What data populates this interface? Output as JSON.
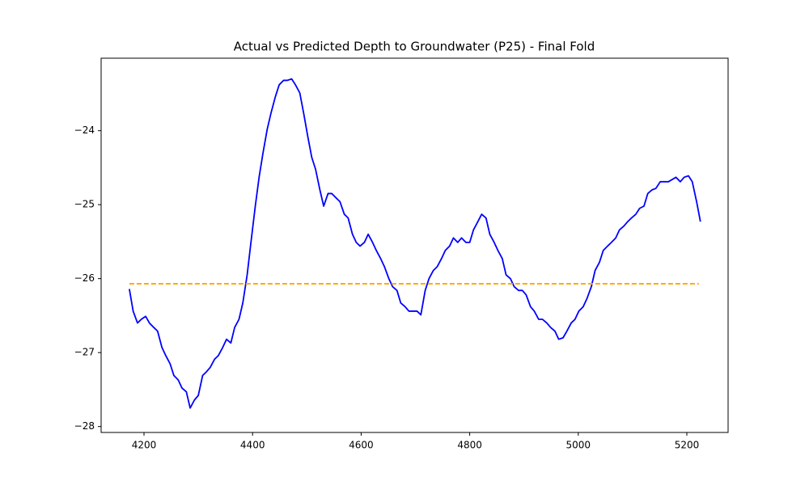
{
  "chart_data": {
    "type": "line",
    "title": "Actual vs Predicted Depth to Groundwater (P25) - Final Fold",
    "xlim": [
      4121,
      5276
    ],
    "ylim": [
      -28.08,
      -23.02
    ],
    "xticks": [
      4200,
      4400,
      4600,
      4800,
      5000,
      5200
    ],
    "yticks": [
      {
        "value": -24,
        "label": "−24"
      },
      {
        "value": -25,
        "label": "−25"
      },
      {
        "value": -26,
        "label": "−26"
      },
      {
        "value": -27,
        "label": "−27"
      },
      {
        "value": -28,
        "label": "−28"
      }
    ],
    "grid": false,
    "series": [
      {
        "color": "#0000ff",
        "dashed": false,
        "x": [
          4173,
          4180,
          4188,
          4195,
          4203,
          4210,
          4218,
          4225,
          4233,
          4240,
          4248,
          4255,
          4263,
          4270,
          4278,
          4285,
          4293,
          4300,
          4308,
          4315,
          4322,
          4330,
          4337,
          4345,
          4352,
          4360,
          4367,
          4375,
          4382,
          4390,
          4397,
          4405,
          4412,
          4419,
          4427,
          4434,
          4442,
          4449,
          4457,
          4464,
          4472,
          4479,
          4487,
          4494,
          4502,
          4509,
          4516,
          4524,
          4531,
          4539,
          4546,
          4554,
          4561,
          4569,
          4576,
          4584,
          4591,
          4598,
          4606,
          4613,
          4621,
          4628,
          4636,
          4643,
          4651,
          4658,
          4666,
          4673,
          4681,
          4688,
          4696,
          4703,
          4710,
          4718,
          4725,
          4733,
          4740,
          4748,
          4755,
          4763,
          4770,
          4778,
          4785,
          4793,
          4800,
          4807,
          4815,
          4822,
          4830,
          4837,
          4845,
          4852,
          4860,
          4867,
          4875,
          4882,
          4890,
          4897,
          4904,
          4912,
          4919,
          4927,
          4934,
          4942,
          4949,
          4957,
          4964,
          4972,
          4979,
          4987,
          4994,
          5001,
          5009,
          5016,
          5024,
          5031,
          5039,
          5046,
          5054,
          5061,
          5069,
          5076,
          5084,
          5091,
          5098,
          5106,
          5113,
          5121,
          5128,
          5136,
          5143,
          5151,
          5158,
          5166,
          5173,
          5180,
          5188,
          5195,
          5203,
          5210,
          5218,
          5225
        ],
        "values": [
          -26.14,
          -26.44,
          -26.6,
          -26.55,
          -26.51,
          -26.6,
          -26.66,
          -26.71,
          -26.93,
          -27.04,
          -27.15,
          -27.31,
          -27.37,
          -27.48,
          -27.53,
          -27.75,
          -27.64,
          -27.58,
          -27.31,
          -27.26,
          -27.2,
          -27.09,
          -27.04,
          -26.93,
          -26.82,
          -26.87,
          -26.66,
          -26.55,
          -26.33,
          -25.95,
          -25.51,
          -25.02,
          -24.63,
          -24.31,
          -23.98,
          -23.76,
          -23.54,
          -23.38,
          -23.32,
          -23.32,
          -23.3,
          -23.38,
          -23.49,
          -23.76,
          -24.09,
          -24.36,
          -24.52,
          -24.8,
          -25.02,
          -24.85,
          -24.85,
          -24.91,
          -24.96,
          -25.13,
          -25.18,
          -25.4,
          -25.51,
          -25.56,
          -25.51,
          -25.4,
          -25.51,
          -25.62,
          -25.73,
          -25.84,
          -26.0,
          -26.11,
          -26.16,
          -26.33,
          -26.38,
          -26.44,
          -26.44,
          -26.44,
          -26.49,
          -26.16,
          -26.0,
          -25.89,
          -25.84,
          -25.73,
          -25.62,
          -25.56,
          -25.45,
          -25.51,
          -25.45,
          -25.51,
          -25.51,
          -25.34,
          -25.23,
          -25.13,
          -25.18,
          -25.4,
          -25.51,
          -25.62,
          -25.73,
          -25.95,
          -26.0,
          -26.11,
          -26.16,
          -26.16,
          -26.22,
          -26.38,
          -26.44,
          -26.55,
          -26.55,
          -26.6,
          -26.66,
          -26.71,
          -26.82,
          -26.8,
          -26.71,
          -26.6,
          -26.55,
          -26.44,
          -26.38,
          -26.27,
          -26.11,
          -25.89,
          -25.78,
          -25.62,
          -25.56,
          -25.51,
          -25.45,
          -25.34,
          -25.29,
          -25.23,
          -25.18,
          -25.13,
          -25.05,
          -25.02,
          -24.85,
          -24.8,
          -24.78,
          -24.69,
          -24.69,
          -24.69,
          -24.66,
          -24.63,
          -24.69,
          -24.63,
          -24.61,
          -24.69,
          -24.96,
          -25.23
        ]
      },
      {
        "color": "#ffa500",
        "dashed": true,
        "x": [
          4173,
          5222
        ],
        "values": [
          -26.07,
          -26.07
        ]
      }
    ]
  }
}
